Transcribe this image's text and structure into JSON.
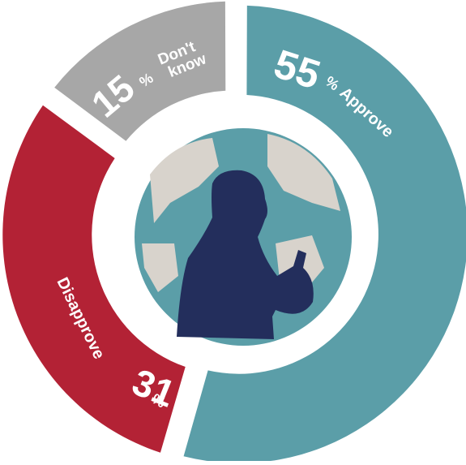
{
  "chart_data": {
    "type": "donut",
    "categories": [
      "Approve",
      "Disapprove",
      "Don't know"
    ],
    "values": [
      55,
      31,
      15
    ],
    "unit": "%",
    "colors": [
      "#5b9ea8",
      "#b32235",
      "#a7a7a7"
    ]
  }
}
